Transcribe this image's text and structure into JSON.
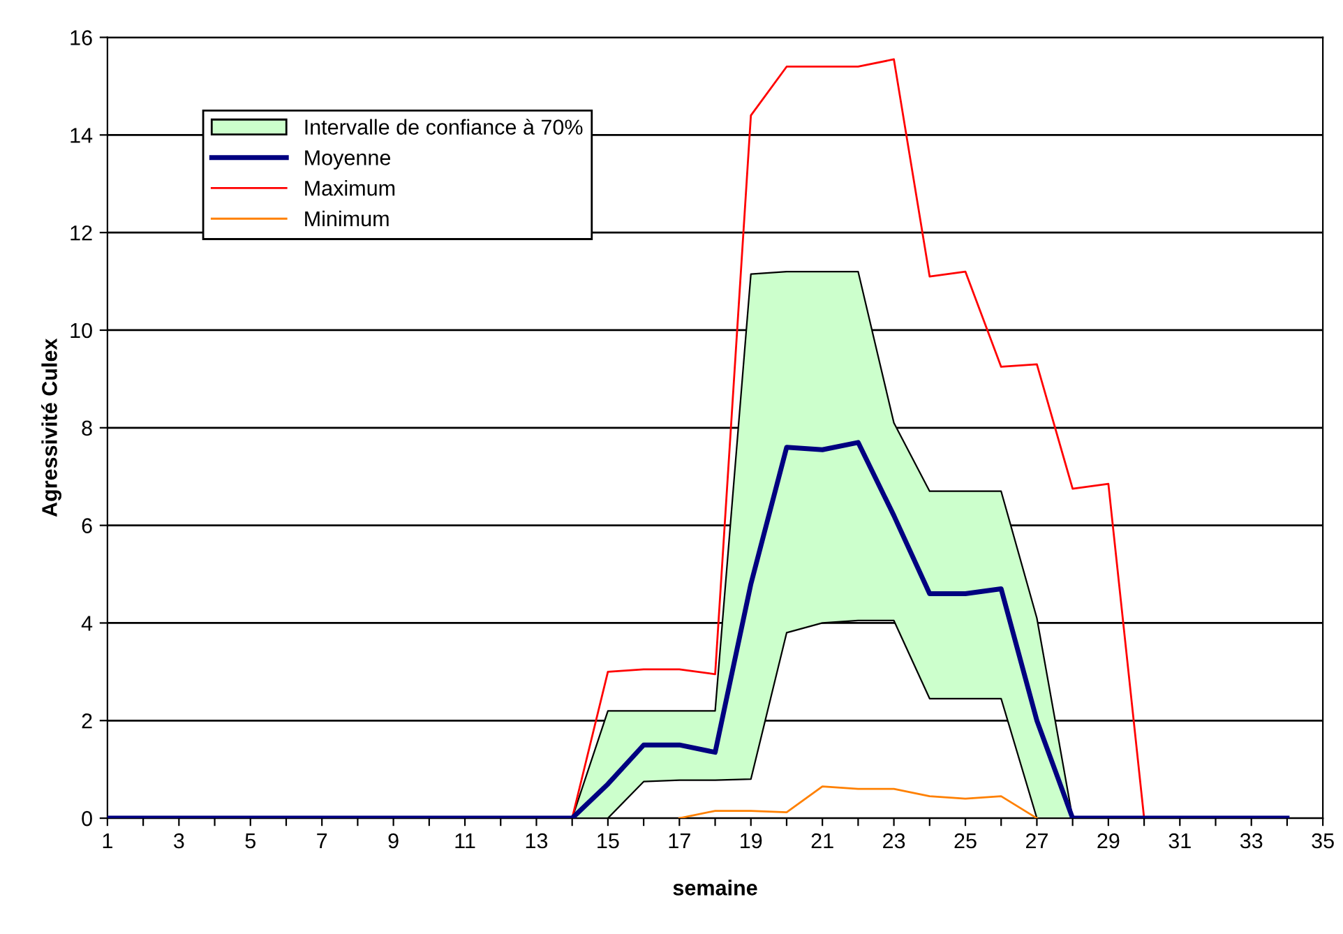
{
  "chart_data": {
    "type": "line",
    "xlabel": "semaine",
    "ylabel": "Agressivité Culex",
    "x": [
      1,
      2,
      3,
      4,
      5,
      6,
      7,
      8,
      9,
      10,
      11,
      12,
      13,
      14,
      15,
      16,
      17,
      18,
      19,
      20,
      21,
      22,
      23,
      24,
      25,
      26,
      27,
      28,
      29,
      30,
      31,
      32,
      33,
      34
    ],
    "series": [
      {
        "color": "#000000",
        "values": [
          null,
          null,
          null,
          null,
          null,
          null,
          null,
          null,
          null,
          null,
          null,
          null,
          null,
          0,
          0,
          0.75,
          0.78,
          0.78,
          0.8,
          3.8,
          4.0,
          4.05,
          4.05,
          2.45,
          2.45,
          2.45,
          0,
          0,
          null,
          null,
          null,
          null,
          null,
          null
        ]
      },
      {
        "name": "Intervalle de confiance à 70%",
        "type": "area",
        "color": "#ccffcc",
        "values": [
          null,
          null,
          null,
          null,
          null,
          null,
          null,
          null,
          null,
          null,
          null,
          null,
          null,
          0,
          2.2,
          2.2,
          2.2,
          2.2,
          11.15,
          11.2,
          11.2,
          11.2,
          8.1,
          6.7,
          6.7,
          6.7,
          4.1,
          0,
          null,
          null,
          null,
          null,
          null,
          null
        ]
      },
      {
        "name": "Moyenne",
        "color": "#000080",
        "values": [
          0,
          0,
          0,
          0,
          0,
          0,
          0,
          0,
          0,
          0,
          0,
          0,
          0,
          0,
          0.7,
          1.5,
          1.5,
          1.35,
          4.8,
          7.6,
          7.55,
          7.7,
          6.2,
          4.6,
          4.6,
          4.7,
          2.0,
          0,
          0,
          0,
          0,
          0,
          0,
          0
        ]
      },
      {
        "name": "Maximum",
        "color": "#ff0000",
        "values": [
          null,
          null,
          null,
          null,
          null,
          null,
          null,
          null,
          null,
          null,
          null,
          null,
          null,
          0,
          3.0,
          3.05,
          3.05,
          2.95,
          14.4,
          15.4,
          15.4,
          15.4,
          15.55,
          11.1,
          11.2,
          9.25,
          9.3,
          6.75,
          6.85,
          0,
          null,
          null,
          null,
          null
        ]
      },
      {
        "name": "Minimum",
        "color": "#ff8000",
        "values": [
          null,
          null,
          null,
          null,
          null,
          null,
          null,
          null,
          null,
          null,
          null,
          null,
          null,
          null,
          null,
          null,
          0,
          0.15,
          0.15,
          0.12,
          0.65,
          0.6,
          0.6,
          0.45,
          0.4,
          0.45,
          0,
          null,
          null,
          null,
          null,
          null,
          null,
          null
        ]
      }
    ],
    "xlim": [
      1,
      35
    ],
    "xticks": [
      1,
      {
        "value": 2,
        "label": null
      },
      3,
      {
        "value": 4,
        "label": null
      },
      5,
      {
        "value": 6,
        "label": null
      },
      7,
      {
        "value": 8,
        "label": null
      },
      9,
      {
        "value": 10,
        "label": null
      },
      11,
      {
        "value": 12,
        "label": null
      },
      13,
      {
        "value": 14,
        "label": null
      },
      15,
      {
        "value": 16,
        "label": null
      },
      17,
      {
        "value": 18,
        "label": null
      },
      19,
      {
        "value": 20,
        "label": null
      },
      21,
      {
        "value": 22,
        "label": null
      },
      23,
      {
        "value": 24,
        "label": null
      },
      25,
      {
        "value": 26,
        "label": null
      },
      27,
      {
        "value": 28,
        "label": null
      },
      29,
      {
        "value": 30,
        "label": null
      },
      31,
      {
        "value": 32,
        "label": null
      },
      33,
      {
        "value": 34,
        "label": null
      },
      35
    ],
    "ylim": [
      0,
      16
    ],
    "yticks": [
      0,
      2,
      4,
      6,
      8,
      10,
      12,
      14,
      16
    ],
    "grid": "y",
    "legend": "top left"
  }
}
